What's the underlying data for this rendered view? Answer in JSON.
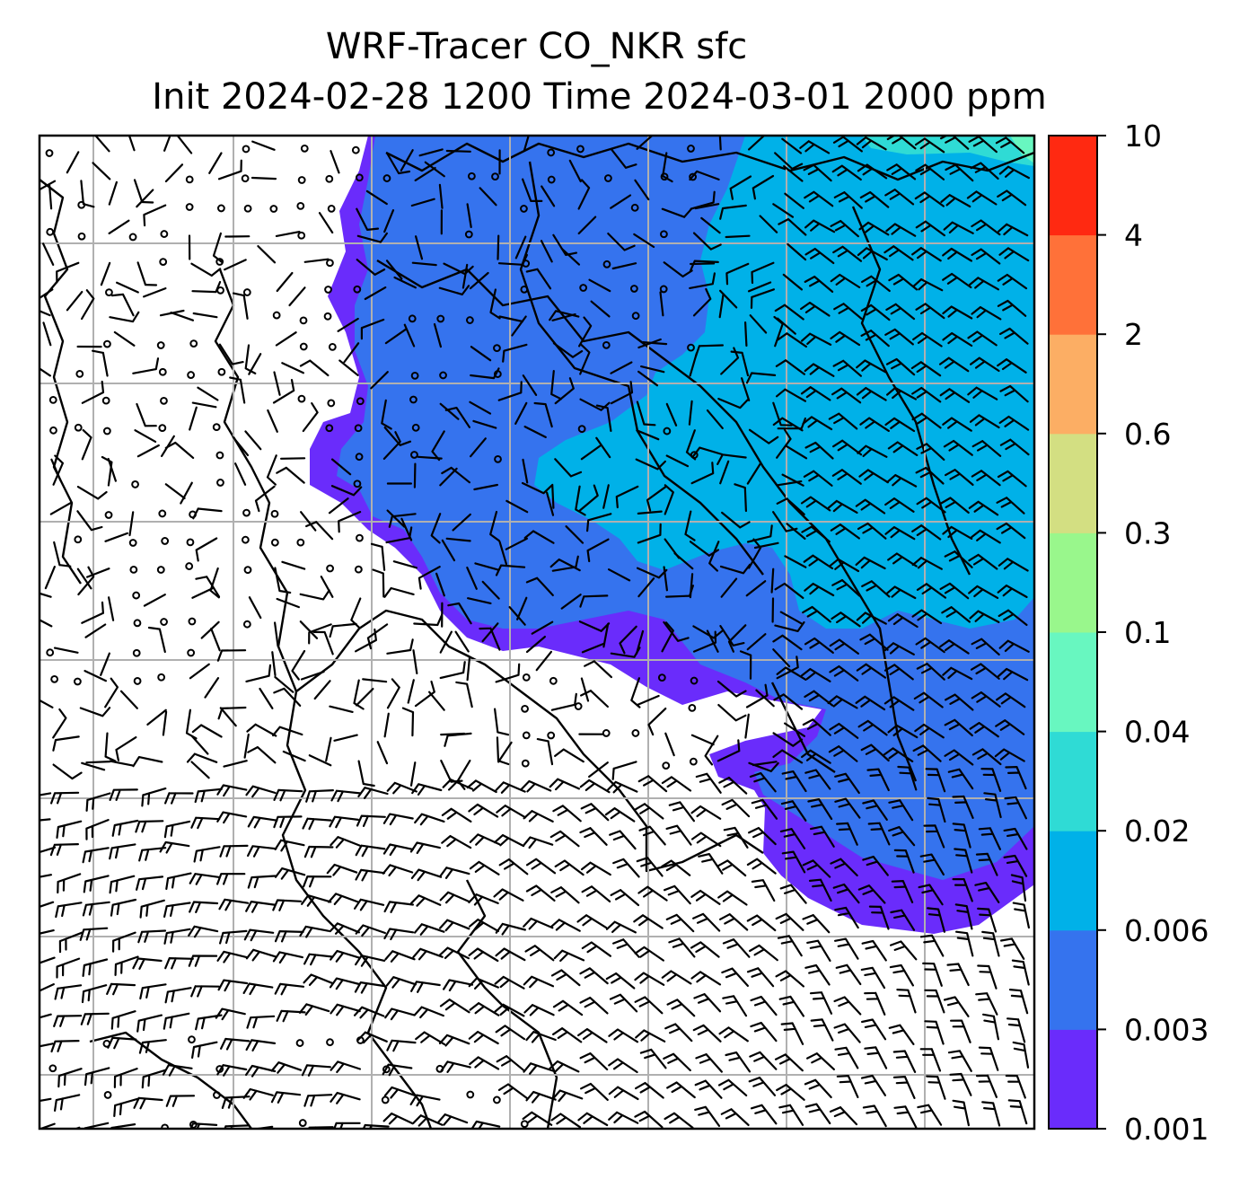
{
  "title": {
    "line1": "WRF-Tracer CO_NKR sfc",
    "line2": "Init 2024-02-28 1200 Time 2024-03-01 2000 ppm"
  },
  "colorbar": {
    "levels": [
      "0.001",
      "0.003",
      "0.006",
      "0.02",
      "0.04",
      "0.1",
      "0.3",
      "0.6",
      "2",
      "4",
      "10"
    ],
    "colors": [
      "#6a2cfb",
      "#3573ee",
      "#00b1e8",
      "#2fdbd5",
      "#68f7c0",
      "#99f78c",
      "#d3df82",
      "#fcae64",
      "#ff7139",
      "#ff2911"
    ]
  },
  "map": {
    "background": "#ffffff",
    "gridline_color": "#b0b0b0",
    "barb_color": "#000000",
    "coastline_color": "#000000"
  }
}
